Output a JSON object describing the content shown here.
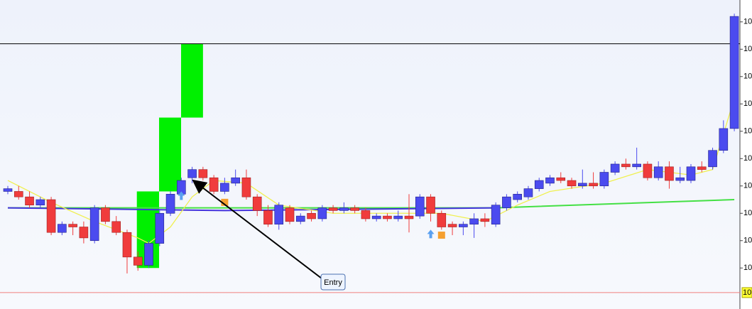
{
  "chart_data": {
    "type": "candlestick",
    "ylim": [
      9.85,
      10.98
    ],
    "yticks": [
      {
        "value": 10.9,
        "label": "10"
      },
      {
        "value": 10.8,
        "label": "10"
      },
      {
        "value": 10.7,
        "label": "10"
      },
      {
        "value": 10.6,
        "label": "10"
      },
      {
        "value": 10.5,
        "label": "10"
      },
      {
        "value": 10.4,
        "label": "10"
      },
      {
        "value": 10.3,
        "label": "10"
      },
      {
        "value": 10.2,
        "label": "10"
      },
      {
        "value": 10.1,
        "label": "10"
      },
      {
        "value": 10.0,
        "label": "10"
      }
    ],
    "up_color": "#4b4bef",
    "down_color": "#f03c3c",
    "open": [
      10.28,
      10.28,
      10.26,
      10.23,
      10.25,
      10.13,
      10.16,
      10.15,
      10.1,
      10.22,
      10.17,
      10.13,
      10.04,
      10.01,
      10.09,
      10.2,
      10.27,
      10.33,
      10.36,
      10.33,
      10.28,
      10.31,
      10.33,
      10.26,
      10.21,
      10.16,
      10.22,
      10.17,
      10.2,
      10.18,
      10.22,
      10.21,
      10.22,
      10.21,
      10.18,
      10.19,
      10.18,
      10.19,
      10.19,
      10.26,
      10.2,
      10.16,
      10.15,
      10.16,
      10.18,
      10.16,
      10.22,
      10.25,
      10.26,
      10.29,
      10.31,
      10.33,
      10.32,
      10.3,
      10.31,
      10.3,
      10.35,
      10.38,
      10.37,
      10.38,
      10.33,
      10.37,
      10.32,
      10.32,
      10.37,
      10.37,
      10.43,
      10.51
    ],
    "high": [
      10.3,
      10.3,
      10.28,
      10.26,
      10.26,
      10.17,
      10.17,
      10.17,
      10.23,
      10.23,
      10.19,
      10.14,
      10.06,
      10.1,
      10.21,
      10.28,
      10.33,
      10.37,
      10.37,
      10.34,
      10.33,
      10.36,
      10.36,
      10.27,
      10.23,
      10.24,
      10.23,
      10.2,
      10.21,
      10.23,
      10.23,
      10.24,
      10.23,
      10.22,
      10.2,
      10.2,
      10.21,
      10.27,
      10.27,
      10.27,
      10.21,
      10.17,
      10.17,
      10.2,
      10.2,
      10.24,
      10.27,
      10.28,
      10.3,
      10.33,
      10.34,
      10.35,
      10.33,
      10.36,
      10.35,
      10.36,
      10.39,
      10.4,
      10.44,
      10.39,
      10.39,
      10.39,
      10.37,
      10.38,
      10.39,
      10.44,
      10.54,
      10.93
    ],
    "low": [
      10.27,
      10.25,
      10.22,
      10.22,
      10.12,
      10.12,
      10.12,
      10.09,
      10.09,
      10.16,
      10.12,
      9.98,
      9.99,
      10.0,
      10.08,
      10.19,
      10.26,
      10.31,
      10.32,
      10.27,
      10.27,
      10.3,
      10.25,
      10.19,
      10.15,
      10.14,
      10.16,
      10.16,
      10.17,
      10.17,
      10.2,
      10.2,
      10.2,
      10.17,
      10.17,
      10.17,
      10.17,
      10.13,
      10.18,
      10.17,
      10.14,
      10.12,
      10.12,
      10.11,
      10.15,
      10.15,
      10.21,
      10.24,
      10.25,
      10.28,
      10.3,
      10.31,
      10.29,
      10.29,
      10.29,
      10.29,
      10.34,
      10.36,
      10.36,
      10.32,
      10.32,
      10.29,
      10.31,
      10.31,
      10.35,
      10.36,
      10.42,
      10.5
    ],
    "close": [
      10.29,
      10.26,
      10.23,
      10.25,
      10.13,
      10.16,
      10.15,
      10.11,
      10.22,
      10.17,
      10.13,
      10.04,
      10.01,
      10.09,
      10.2,
      10.27,
      10.32,
      10.36,
      10.33,
      10.28,
      10.31,
      10.33,
      10.26,
      10.21,
      10.16,
      10.23,
      10.17,
      10.19,
      10.18,
      10.22,
      10.21,
      10.22,
      10.21,
      10.18,
      10.19,
      10.18,
      10.19,
      10.18,
      10.26,
      10.2,
      10.15,
      10.15,
      10.16,
      10.18,
      10.17,
      10.23,
      10.26,
      10.27,
      10.29,
      10.32,
      10.33,
      10.32,
      10.3,
      10.31,
      10.3,
      10.35,
      10.38,
      10.37,
      10.38,
      10.33,
      10.37,
      10.32,
      10.33,
      10.37,
      10.36,
      10.43,
      10.51,
      10.92
    ],
    "lines": [
      {
        "color": "#44e044",
        "x": [
          0,
          45,
          67
        ],
        "values": [
          10.22,
          10.22,
          10.25
        ]
      },
      {
        "color": "#4433dd",
        "x": [
          0,
          20,
          45
        ],
        "values": [
          10.22,
          10.21,
          10.22
        ]
      },
      {
        "color": "#f0f050",
        "x": [
          0,
          4,
          8,
          12,
          13,
          15,
          17,
          19,
          22,
          25,
          30,
          36,
          40,
          44,
          47,
          50,
          55,
          59,
          63,
          65,
          67
        ],
        "values": [
          10.32,
          10.24,
          10.17,
          10.11,
          10.09,
          10.15,
          10.26,
          10.32,
          10.31,
          10.23,
          10.2,
          10.2,
          10.2,
          10.17,
          10.23,
          10.28,
          10.31,
          10.36,
          10.34,
          10.36,
          10.62
        ]
      }
    ],
    "boxes": [
      {
        "x": [
          11.9,
          13.95
        ],
        "values": [
          10.0,
          10.28
        ],
        "color": "#00f000"
      },
      {
        "x": [
          13.95,
          15.98
        ],
        "values": [
          10.28,
          10.55
        ],
        "color": "#00f000"
      },
      {
        "x": [
          15.98,
          18.0
        ],
        "values": [
          10.55,
          10.82
        ],
        "color": "#00f000"
      }
    ],
    "arrows": {
      "x": [
        16,
        39
      ],
      "values": [
        10.28,
        10.14
      ],
      "color": "#5aa0f0"
    },
    "squares": {
      "x": [
        20,
        40
      ],
      "values": [
        10.24,
        10.12
      ],
      "color": "#f5a030"
    },
    "hlines": [
      {
        "value": 10.82,
        "color": "#000000"
      },
      {
        "value": 9.91,
        "color": "#f08080",
        "label": "10"
      }
    ],
    "annotation": {
      "text": "Entry"
    }
  }
}
